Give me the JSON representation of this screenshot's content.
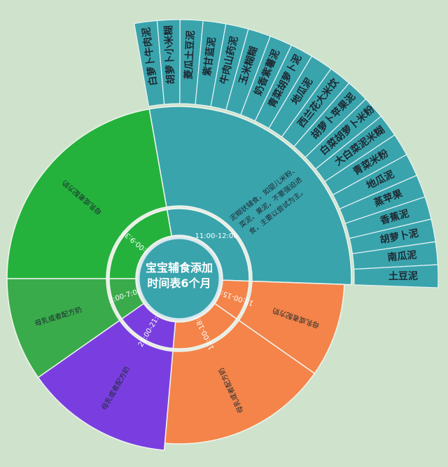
{
  "center": {
    "line1": "宝宝辅食添加",
    "line2": "时间表6个月"
  },
  "colors": {
    "background": "#cfe3cc",
    "teal": "#3aa4ad",
    "green_dark": "#24b23c",
    "green_mid": "#3aab4a",
    "purple": "#7a3ee0",
    "orange": "#f48449",
    "center": "#3aa4ad",
    "ring_gap": "#e8efe6"
  },
  "slots": [
    {
      "time": "9:00-9:30",
      "feeding": "母乳或者配方奶",
      "color": "green_dark"
    },
    {
      "time": "11:00-12:00",
      "feeding": "泥糊状辅食，如婴儿米粉、菜泥、果泥，不要强迫进食，主要以尝试为主。",
      "color": "teal"
    },
    {
      "time": "15:00-15:30",
      "feeding": "母乳或者配方奶",
      "color": "orange"
    },
    {
      "time": "17:00-18:00",
      "feeding": "母乳或者配方奶",
      "color": "orange"
    },
    {
      "time": "20:00-21:00",
      "feeding": "母乳或者配方奶",
      "color": "purple"
    },
    {
      "time": "5:00-7:00",
      "feeding": "母乳或者配方奶",
      "color": "green_mid"
    }
  ],
  "foods": [
    "白萝卜牛肉泥",
    "胡萝卜小米糊",
    "菱瓜土豆泥",
    "紫甘蓝泥",
    "牛肉山药泥",
    "玉米糊糊",
    "奶香紫薯泥",
    "青菜胡萝卜泥",
    "地瓜泥",
    "西兰花大米饮",
    "胡萝卜苹果泥",
    "白菜胡萝卜米粉",
    "大白菜泥米糊",
    "青菜米粉",
    "地瓜泥",
    "蒸苹果",
    "香蕉泥",
    "胡萝卜泥",
    "南瓜泥",
    "土豆泥"
  ]
}
